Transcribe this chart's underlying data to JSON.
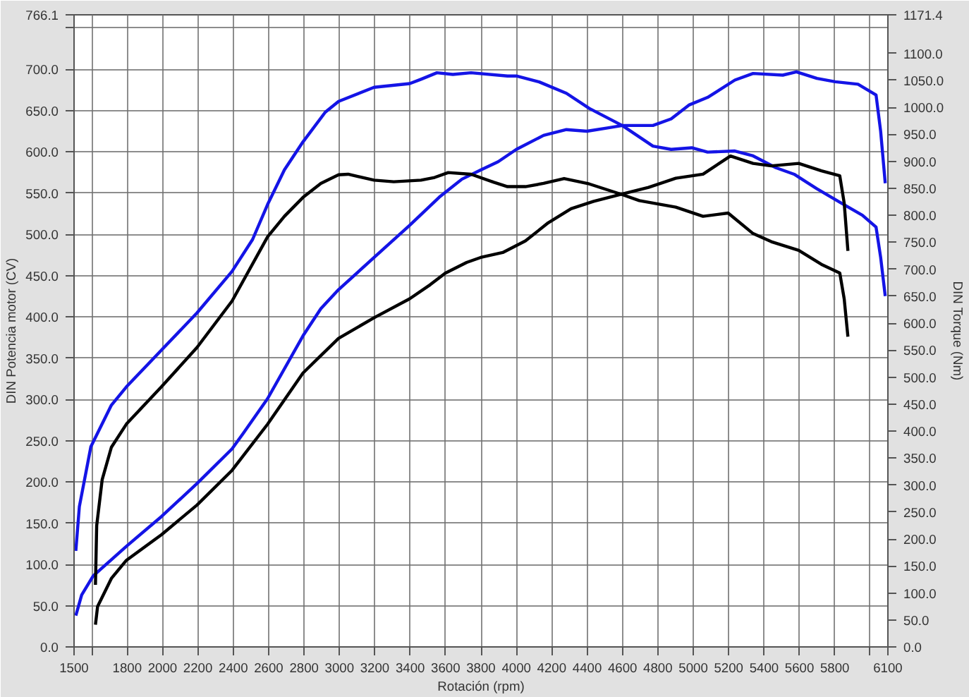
{
  "chart_data": {
    "type": "line",
    "xlabel": "Rotación (rpm)",
    "ylabel": "DIN Potencia motor (CV)",
    "y2label": "DIN Torque (Nm)",
    "xlim": [
      1500,
      6100
    ],
    "ylim": [
      0,
      766.1
    ],
    "y2lim": [
      0,
      1171.4
    ],
    "xticks": [
      1500,
      {
        "value": 1600,
        "label": null
      },
      1800,
      2000,
      2200,
      2400,
      2600,
      2800,
      3000,
      3200,
      3400,
      3600,
      3800,
      4000,
      4200,
      4400,
      4600,
      4800,
      5000,
      5200,
      5400,
      5600,
      5800,
      {
        "value": 6000,
        "label": null
      },
      6100
    ],
    "yticks": [
      {
        "value": 0,
        "label": "0.0"
      },
      {
        "value": 50,
        "label": "50.0"
      },
      {
        "value": 100,
        "label": "100.0"
      },
      {
        "value": 150,
        "label": "150.0"
      },
      {
        "value": 200,
        "label": "200.0"
      },
      {
        "value": 250,
        "label": "250.0"
      },
      {
        "value": 300,
        "label": "300.0"
      },
      {
        "value": 350,
        "label": "350.0"
      },
      {
        "value": 400,
        "label": "400.0"
      },
      {
        "value": 450,
        "label": "450.0"
      },
      {
        "value": 500,
        "label": "500.0"
      },
      {
        "value": 550,
        "label": "550.0"
      },
      {
        "value": 600,
        "label": "600.0"
      },
      {
        "value": 650,
        "label": "650.0"
      },
      {
        "value": 700,
        "label": "700.0"
      },
      {
        "value": 750,
        "label": null
      },
      766.1
    ],
    "y2ticks": [
      {
        "value": 0,
        "label": "0.0"
      },
      {
        "value": 50,
        "label": "50.0"
      },
      {
        "value": 100,
        "label": "100.0"
      },
      {
        "value": 150,
        "label": "150.0"
      },
      {
        "value": 200,
        "label": "200.0"
      },
      {
        "value": 250,
        "label": "250.0"
      },
      {
        "value": 300,
        "label": "300.0"
      },
      {
        "value": 350,
        "label": "350.0"
      },
      {
        "value": 400,
        "label": "400.0"
      },
      {
        "value": 450,
        "label": "450.0"
      },
      {
        "value": 500,
        "label": "500.0"
      },
      {
        "value": 550,
        "label": "550.0"
      },
      {
        "value": 600,
        "label": "600.0"
      },
      {
        "value": 650,
        "label": "650.0"
      },
      {
        "value": 700,
        "label": "700.0"
      },
      {
        "value": 750,
        "label": "750.0"
      },
      {
        "value": 800,
        "label": "800.0"
      },
      {
        "value": 850,
        "label": "850.0"
      },
      {
        "value": 900,
        "label": "900.0"
      },
      {
        "value": 950,
        "label": "950.0"
      },
      {
        "value": 1000,
        "label": "1000.0"
      },
      {
        "value": 1050,
        "label": "1050.0"
      },
      {
        "value": 1100,
        "label": "1100.0"
      },
      1171.4
    ],
    "grid": true,
    "line_style": "solid",
    "marker": "none",
    "series": [
      {
        "color": "#1414e6",
        "axis": "y",
        "x": [
          1510,
          1543,
          1608,
          1796,
          1994,
          2195,
          2393,
          2457,
          2594,
          2794,
          2895,
          2995,
          3196,
          3397,
          3564,
          3693,
          3798,
          3897,
          4000,
          4154,
          4283,
          4399,
          4515,
          4600,
          4772,
          4875,
          4978,
          5081,
          5235,
          5338,
          5506,
          5583,
          5699,
          5802,
          5931,
          6033,
          6059,
          6085
        ],
        "values": [
          38,
          63,
          86,
          122,
          158,
          198,
          240,
          259,
          301,
          377,
          410,
          433,
          472,
          511,
          545,
          567,
          578,
          588,
          603,
          620,
          627,
          625,
          629,
          632,
          632,
          640,
          657,
          666,
          687,
          695,
          693,
          697,
          689,
          685,
          682,
          669,
          625,
          562
        ]
      },
      {
        "color": "#1414e6",
        "axis": "y2",
        "x": [
          1510,
          1530,
          1595,
          1711,
          1796,
          1994,
          2195,
          2393,
          2509,
          2594,
          2689,
          2794,
          2920,
          2995,
          3196,
          3397,
          3461,
          3551,
          3641,
          3744,
          3950,
          4000,
          4129,
          4283,
          4412,
          4600,
          4772,
          4875,
          4991,
          5081,
          5235,
          5338,
          5467,
          5570,
          5699,
          5828,
          5956,
          6033,
          6059,
          6085
        ],
        "values": [
          178,
          260,
          371,
          448,
          482,
          550,
          619,
          696,
          755,
          820,
          884,
          936,
          991,
          1011,
          1037,
          1044,
          1052,
          1064,
          1061,
          1064,
          1058,
          1058,
          1047,
          1026,
          998,
          966,
          928,
          922,
          925,
          917,
          919,
          910,
          888,
          876,
          849,
          824,
          800,
          778,
          722,
          650
        ]
      },
      {
        "color": "#000000",
        "axis": "y",
        "x": [
          1621,
          1633,
          1711,
          1796,
          1994,
          2195,
          2393,
          2594,
          2794,
          2995,
          3196,
          3397,
          3513,
          3598,
          3719,
          3798,
          3923,
          4051,
          4180,
          4309,
          4437,
          4600,
          4747,
          4901,
          5055,
          5210,
          5338,
          5441,
          5596,
          5724,
          5828,
          5853,
          5874
        ],
        "values": [
          27,
          49,
          83,
          105,
          136,
          172,
          214,
          270,
          332,
          374,
          399,
          422,
          439,
          453,
          466,
          472,
          478,
          492,
          514,
          531,
          540,
          549,
          557,
          568,
          573,
          595,
          586,
          583,
          586,
          577,
          571,
          538,
          480
        ]
      },
      {
        "color": "#000000",
        "axis": "y2",
        "x": [
          1621,
          1628,
          1659,
          1711,
          1796,
          1994,
          2195,
          2393,
          2594,
          2689,
          2794,
          2895,
          2995,
          3049,
          3196,
          3307,
          3461,
          3538,
          3615,
          3744,
          3873,
          3950,
          4051,
          4154,
          4270,
          4412,
          4600,
          4695,
          4901,
          5055,
          5197,
          5338,
          5441,
          5596,
          5724,
          5828,
          5853,
          5874
        ],
        "values": [
          115,
          225,
          310,
          370,
          413,
          482,
          555,
          641,
          760,
          798,
          833,
          859,
          875,
          876,
          865,
          862,
          865,
          870,
          879,
          876,
          861,
          853,
          853,
          859,
          868,
          858,
          838,
          827,
          815,
          798,
          804,
          766,
          751,
          735,
          709,
          693,
          645,
          575
        ]
      }
    ]
  }
}
